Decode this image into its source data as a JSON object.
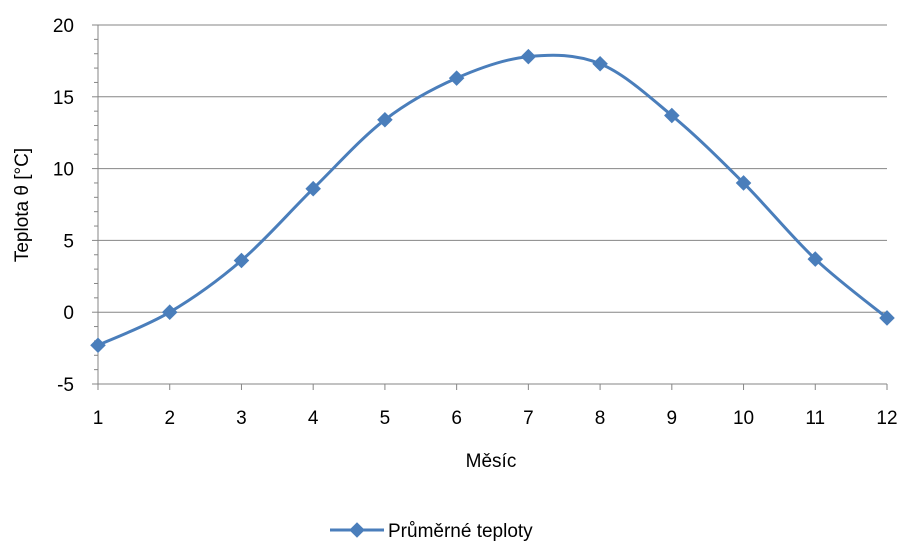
{
  "chart_data": {
    "type": "line",
    "xlabel": "Měsíc",
    "ylabel": "Teplota θ [°C]",
    "x": [
      1,
      2,
      3,
      4,
      5,
      6,
      7,
      8,
      9,
      10,
      11,
      12
    ],
    "xlim": [
      1,
      12
    ],
    "ylim": [
      -5,
      20
    ],
    "x_ticks": [
      "1",
      "2",
      "3",
      "4",
      "5",
      "6",
      "7",
      "8",
      "9",
      "10",
      "11",
      "12"
    ],
    "y_ticks": [
      "-5",
      "0",
      "5",
      "10",
      "15",
      "20"
    ],
    "y_tick_values": [
      -5,
      0,
      5,
      10,
      15,
      20
    ],
    "grid": true,
    "smooth": true,
    "legend_position": "bottom",
    "series": [
      {
        "name": "Průměrné teploty",
        "color": "#4a7ebb",
        "marker": "diamond",
        "values": [
          -2.3,
          0.0,
          3.6,
          8.6,
          13.4,
          16.3,
          17.8,
          17.3,
          13.7,
          9.0,
          3.7,
          -0.4
        ]
      }
    ]
  }
}
